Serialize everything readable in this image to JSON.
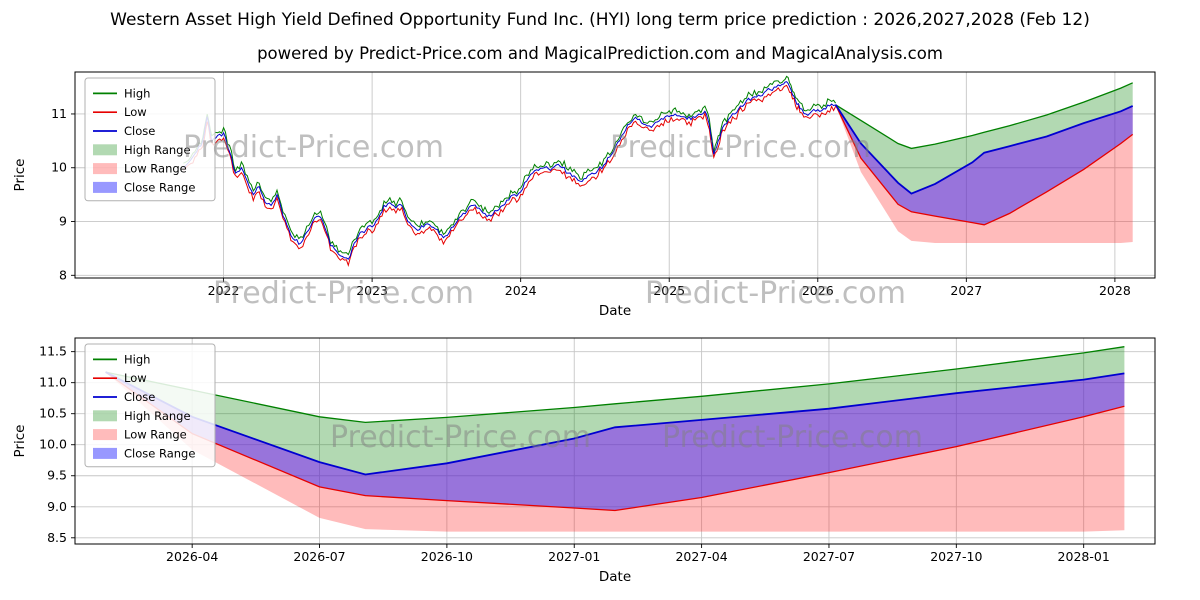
{
  "title": "Western Asset High Yield Defined Opportunity Fund Inc. (HYI) long term price prediction : 2026,2027,2028 (Feb 12)",
  "subtitle": "powered by Predict-Price.com and MagicalPrediction.com and MagicalAnalysis.com",
  "watermark": "Predict-Price.com",
  "colors": {
    "high": "#008000",
    "low": "#e60000",
    "close": "#0000d0",
    "high_range": "rgba(0,128,0,0.30)",
    "low_range": "rgba(255,30,30,0.30)",
    "close_range": "rgba(40,40,255,0.48)",
    "grid": "#c6c6c6",
    "spine": "#000000",
    "text": "#000000"
  },
  "legend": [
    {
      "label": "High",
      "swatch": "line",
      "color": "high"
    },
    {
      "label": "Low",
      "swatch": "line",
      "color": "low"
    },
    {
      "label": "Close",
      "swatch": "line",
      "color": "close"
    },
    {
      "label": "High Range",
      "swatch": "patch",
      "color": "high_range"
    },
    {
      "label": "Low Range",
      "swatch": "patch",
      "color": "low_range"
    },
    {
      "label": "Close Range",
      "swatch": "patch",
      "color": "close_range"
    }
  ],
  "chart_data": [
    {
      "type": "line",
      "name": "long-term-history-and-prediction",
      "xlabel": "Date",
      "ylabel": "Price",
      "xlim": [
        2021.0,
        2028.27
      ],
      "ylim": [
        7.95,
        11.78
      ],
      "x_ticks": [
        {
          "v": 2022,
          "label": "2022"
        },
        {
          "v": 2023,
          "label": "2023"
        },
        {
          "v": 2024,
          "label": "2024"
        },
        {
          "v": 2025,
          "label": "2025"
        },
        {
          "v": 2026,
          "label": "2026"
        },
        {
          "v": 2027,
          "label": "2027"
        },
        {
          "v": 2028,
          "label": "2028"
        }
      ],
      "y_ticks": [
        {
          "v": 8,
          "label": "8"
        },
        {
          "v": 9,
          "label": "9"
        },
        {
          "v": 10,
          "label": "10"
        },
        {
          "v": 11,
          "label": "11"
        }
      ],
      "historical": {
        "close_anchors": [
          [
            2021.73,
            10.0
          ],
          [
            2021.78,
            10.15
          ],
          [
            2021.82,
            10.3
          ],
          [
            2021.86,
            10.5
          ],
          [
            2021.89,
            10.95
          ],
          [
            2021.92,
            10.5
          ],
          [
            2021.96,
            10.6
          ],
          [
            2022.0,
            10.65
          ],
          [
            2022.04,
            10.3
          ],
          [
            2022.08,
            9.9
          ],
          [
            2022.12,
            10.0
          ],
          [
            2022.16,
            9.75
          ],
          [
            2022.2,
            9.5
          ],
          [
            2022.24,
            9.65
          ],
          [
            2022.28,
            9.35
          ],
          [
            2022.32,
            9.3
          ],
          [
            2022.36,
            9.5
          ],
          [
            2022.4,
            9.1
          ],
          [
            2022.44,
            8.85
          ],
          [
            2022.48,
            8.65
          ],
          [
            2022.52,
            8.6
          ],
          [
            2022.56,
            8.8
          ],
          [
            2022.6,
            9.0
          ],
          [
            2022.64,
            9.1
          ],
          [
            2022.68,
            8.9
          ],
          [
            2022.72,
            8.55
          ],
          [
            2022.76,
            8.45
          ],
          [
            2022.8,
            8.35
          ],
          [
            2022.84,
            8.3
          ],
          [
            2022.88,
            8.6
          ],
          [
            2022.92,
            8.8
          ],
          [
            2022.96,
            8.85
          ],
          [
            2023.0,
            8.9
          ],
          [
            2023.04,
            9.05
          ],
          [
            2023.08,
            9.3
          ],
          [
            2023.12,
            9.35
          ],
          [
            2023.16,
            9.25
          ],
          [
            2023.2,
            9.3
          ],
          [
            2023.24,
            9.0
          ],
          [
            2023.28,
            8.9
          ],
          [
            2023.32,
            8.85
          ],
          [
            2023.36,
            8.95
          ],
          [
            2023.4,
            8.9
          ],
          [
            2023.44,
            8.85
          ],
          [
            2023.48,
            8.7
          ],
          [
            2023.52,
            8.8
          ],
          [
            2023.56,
            8.95
          ],
          [
            2023.6,
            9.1
          ],
          [
            2023.64,
            9.2
          ],
          [
            2023.68,
            9.3
          ],
          [
            2023.72,
            9.25
          ],
          [
            2023.76,
            9.15
          ],
          [
            2023.8,
            9.1
          ],
          [
            2023.84,
            9.2
          ],
          [
            2023.88,
            9.3
          ],
          [
            2023.92,
            9.4
          ],
          [
            2023.96,
            9.5
          ],
          [
            2024.0,
            9.55
          ],
          [
            2024.04,
            9.75
          ],
          [
            2024.08,
            9.9
          ],
          [
            2024.12,
            9.95
          ],
          [
            2024.16,
            10.0
          ],
          [
            2024.2,
            9.95
          ],
          [
            2024.24,
            10.05
          ],
          [
            2024.28,
            10.0
          ],
          [
            2024.32,
            9.9
          ],
          [
            2024.36,
            9.85
          ],
          [
            2024.4,
            9.75
          ],
          [
            2024.44,
            9.8
          ],
          [
            2024.48,
            9.9
          ],
          [
            2024.52,
            9.95
          ],
          [
            2024.56,
            10.05
          ],
          [
            2024.6,
            10.2
          ],
          [
            2024.64,
            10.4
          ],
          [
            2024.68,
            10.6
          ],
          [
            2024.72,
            10.8
          ],
          [
            2024.76,
            10.9
          ],
          [
            2024.8,
            10.9
          ],
          [
            2024.84,
            10.8
          ],
          [
            2024.88,
            10.75
          ],
          [
            2024.92,
            10.85
          ],
          [
            2024.96,
            10.9
          ],
          [
            2025.0,
            10.95
          ],
          [
            2025.04,
            11.0
          ],
          [
            2025.08,
            10.95
          ],
          [
            2025.12,
            10.9
          ],
          [
            2025.16,
            10.95
          ],
          [
            2025.2,
            11.0
          ],
          [
            2025.24,
            11.05
          ],
          [
            2025.27,
            10.8
          ],
          [
            2025.3,
            10.25
          ],
          [
            2025.33,
            10.5
          ],
          [
            2025.36,
            10.75
          ],
          [
            2025.4,
            10.9
          ],
          [
            2025.44,
            11.0
          ],
          [
            2025.48,
            11.15
          ],
          [
            2025.52,
            11.25
          ],
          [
            2025.56,
            11.3
          ],
          [
            2025.6,
            11.35
          ],
          [
            2025.64,
            11.4
          ],
          [
            2025.68,
            11.45
          ],
          [
            2025.72,
            11.5
          ],
          [
            2025.76,
            11.55
          ],
          [
            2025.79,
            11.6
          ],
          [
            2025.82,
            11.45
          ],
          [
            2025.85,
            11.25
          ],
          [
            2025.88,
            11.1
          ],
          [
            2025.92,
            11.0
          ],
          [
            2025.96,
            11.05
          ],
          [
            2026.0,
            11.08
          ],
          [
            2026.04,
            11.1
          ],
          [
            2026.08,
            11.15
          ],
          [
            2026.12,
            11.17
          ]
        ]
      },
      "prediction": {
        "x": [
          2026.12,
          2026.29,
          2026.54,
          2026.63,
          2026.79,
          2027.04,
          2027.12,
          2027.29,
          2027.54,
          2027.79,
          2028.04,
          2028.12
        ],
        "close": [
          11.17,
          10.45,
          9.72,
          9.52,
          9.7,
          10.1,
          10.28,
          10.4,
          10.58,
          10.83,
          11.05,
          11.15
        ],
        "high_upper": [
          11.17,
          10.88,
          10.45,
          10.36,
          10.44,
          10.6,
          10.66,
          10.78,
          10.98,
          11.22,
          11.48,
          11.58
        ],
        "close_lower": [
          11.17,
          10.18,
          9.32,
          9.18,
          9.1,
          8.98,
          8.94,
          9.15,
          9.55,
          9.97,
          10.45,
          10.62
        ],
        "low_lower": [
          11.17,
          9.92,
          8.82,
          8.64,
          8.6,
          8.6,
          8.6,
          8.6,
          8.6,
          8.6,
          8.6,
          8.62
        ]
      }
    },
    {
      "type": "line",
      "name": "prediction-zoom",
      "xlabel": "Date",
      "ylabel": "Price",
      "xlim": [
        2026.06,
        2028.18
      ],
      "ylim": [
        8.4,
        11.72
      ],
      "x_ticks": [
        {
          "v": 2026.29,
          "label": "2026-04"
        },
        {
          "v": 2026.54,
          "label": "2026-07"
        },
        {
          "v": 2026.79,
          "label": "2026-10"
        },
        {
          "v": 2027.04,
          "label": "2027-01"
        },
        {
          "v": 2027.29,
          "label": "2027-04"
        },
        {
          "v": 2027.54,
          "label": "2027-07"
        },
        {
          "v": 2027.79,
          "label": "2027-10"
        },
        {
          "v": 2028.04,
          "label": "2028-01"
        }
      ],
      "y_ticks": [
        {
          "v": 8.5,
          "label": "8.5"
        },
        {
          "v": 9.0,
          "label": "9.0"
        },
        {
          "v": 9.5,
          "label": "9.5"
        },
        {
          "v": 10.0,
          "label": "10.0"
        },
        {
          "v": 10.5,
          "label": "10.5"
        },
        {
          "v": 11.0,
          "label": "11.0"
        },
        {
          "v": 11.5,
          "label": "11.5"
        }
      ],
      "prediction": {
        "x": [
          2026.12,
          2026.29,
          2026.54,
          2026.63,
          2026.79,
          2027.04,
          2027.12,
          2027.29,
          2027.54,
          2027.79,
          2028.04,
          2028.12
        ],
        "close": [
          11.17,
          10.45,
          9.72,
          9.52,
          9.7,
          10.1,
          10.28,
          10.4,
          10.58,
          10.83,
          11.05,
          11.15
        ],
        "high_upper": [
          11.17,
          10.88,
          10.45,
          10.36,
          10.44,
          10.6,
          10.66,
          10.78,
          10.98,
          11.22,
          11.48,
          11.58
        ],
        "close_lower": [
          11.17,
          10.18,
          9.32,
          9.18,
          9.1,
          8.98,
          8.94,
          9.15,
          9.55,
          9.97,
          10.45,
          10.62
        ],
        "low_lower": [
          11.17,
          9.92,
          8.82,
          8.64,
          8.6,
          8.6,
          8.6,
          8.6,
          8.6,
          8.6,
          8.6,
          8.62
        ]
      }
    }
  ]
}
